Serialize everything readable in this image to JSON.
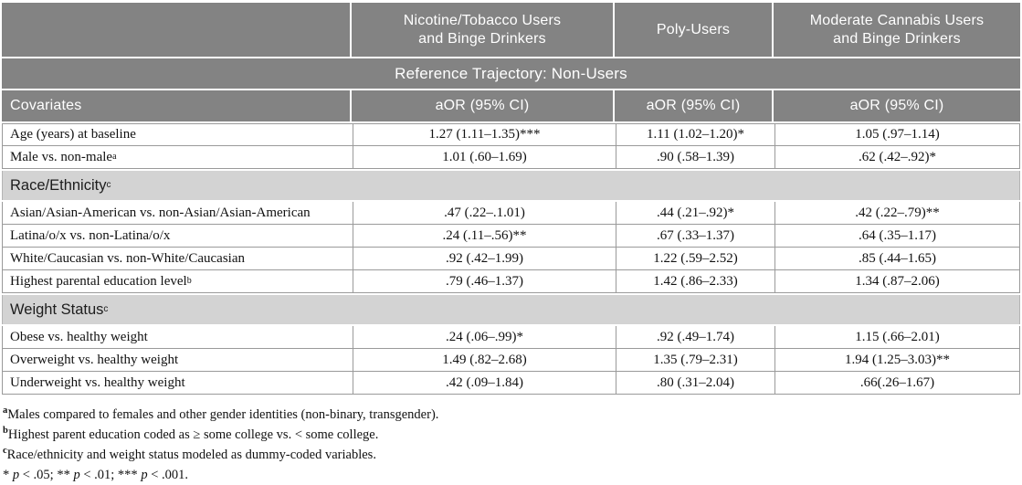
{
  "colors": {
    "header_bg": "#838383",
    "section_bg": "#d3d3d3",
    "border": "#9a9a9a",
    "header_text": "#ffffff"
  },
  "header": {
    "groups": [
      {
        "lines": [
          "Nicotine/Tobacco Users",
          "and Binge Drinkers"
        ]
      },
      {
        "lines": [
          "Poly-Users",
          ""
        ]
      },
      {
        "lines": [
          "Moderate Cannabis Users",
          "and Binge Drinkers"
        ]
      }
    ],
    "reference": "Reference Trajectory: Non-Users",
    "covariates": "Covariates",
    "aor": [
      "aOR (95% CI)",
      "aOR (95% CI)",
      "aOR (95% CI)"
    ]
  },
  "rows": [
    {
      "type": "data",
      "label": "Age (years) at baseline",
      "values": [
        "1.27 (1.11–1.35)***",
        "1.11 (1.02–1.20)*",
        "1.05 (.97–1.14)"
      ]
    },
    {
      "type": "data",
      "label": "Male vs. non-male",
      "label_sup": "a",
      "values": [
        "1.01 (.60–1.69)",
        ".90 (.58–1.39)",
        ".62 (.42–.92)*"
      ]
    },
    {
      "type": "section",
      "label": "Race/Ethnicity",
      "label_sup": "c"
    },
    {
      "type": "data",
      "label": "Asian/Asian-American vs. non-Asian/Asian-American",
      "values": [
        ".47 (.22–.1.01)",
        ".44 (.21–.92)*",
        ".42 (.22–.79)**"
      ]
    },
    {
      "type": "data",
      "label": "Latina/o/x vs. non-Latina/o/x",
      "values": [
        ".24 (.11–.56)**",
        ".67 (.33–1.37)",
        ".64 (.35–1.17)"
      ]
    },
    {
      "type": "data",
      "label": "White/Caucasian vs. non-White/Caucasian",
      "values": [
        ".92 (.42–1.99)",
        "1.22 (.59–2.52)",
        ".85 (.44–1.65)"
      ]
    },
    {
      "type": "data",
      "label": "Highest parental education level",
      "label_sup": "b",
      "values": [
        ".79 (.46–1.37)",
        "1.42 (.86–2.33)",
        "1.34 (.87–2.06)"
      ]
    },
    {
      "type": "section",
      "label": "Weight Status",
      "label_sup": "c"
    },
    {
      "type": "data",
      "label": "Obese vs. healthy weight",
      "values": [
        ".24 (.06–.99)*",
        ".92 (.49–1.74)",
        "1.15 (.66–2.01)"
      ]
    },
    {
      "type": "data",
      "label": "Overweight vs. healthy weight",
      "values": [
        "1.49 (.82–2.68)",
        "1.35 (.79–2.31)",
        "1.94 (1.25–3.03)**"
      ]
    },
    {
      "type": "data",
      "label": "Underweight vs. healthy weight",
      "values": [
        ".42 (.09–1.84)",
        ".80 (.31–2.04)",
        ".66(.26–1.67)"
      ]
    }
  ],
  "footnotes": {
    "items": [
      {
        "sup": "a",
        "text": "Males compared to females and other gender identities (non-binary, transgender)."
      },
      {
        "sup": "b",
        "text": "Highest parent education coded as ≥ some college vs. < some college."
      },
      {
        "sup": "c",
        "text": "Race/ethnicity and weight status modeled as dummy-coded variables."
      }
    ],
    "significance": [
      {
        "t": "* "
      },
      {
        "t": "p",
        "i": true
      },
      {
        "t": " < .05; ** "
      },
      {
        "t": "p",
        "i": true
      },
      {
        "t": " < .01; *** "
      },
      {
        "t": "p",
        "i": true
      },
      {
        "t": " < .001."
      }
    ]
  }
}
